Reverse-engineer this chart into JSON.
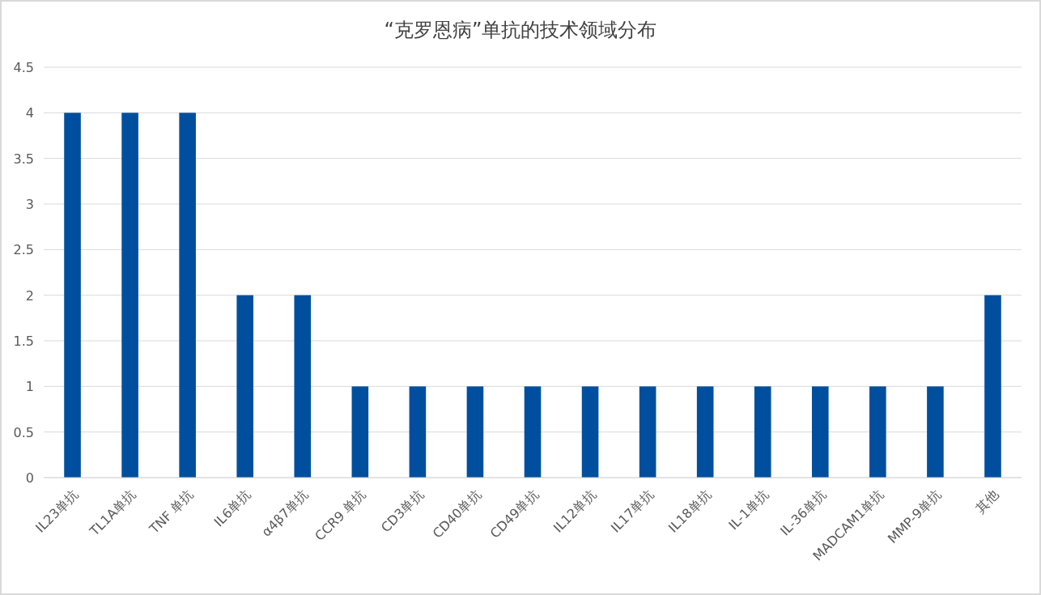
{
  "chart_data": {
    "type": "bar",
    "title": "“克罗恩病”单抗的技术领域分布",
    "categories": [
      "IL23单抗",
      "TL1A单抗",
      "TNF 单抗",
      "IL6单抗",
      "α4β7单抗",
      "CCR9 单抗",
      "CD3单抗",
      "CD40单抗",
      "CD49单抗",
      "IL12单抗",
      "IL17单抗",
      "IL18单抗",
      "IL-1单抗",
      "IL-36单抗",
      "MADCAM1单抗",
      "MMP-9单抗",
      "其他"
    ],
    "values": [
      4,
      4,
      4,
      2,
      2,
      1,
      1,
      1,
      1,
      1,
      1,
      1,
      1,
      1,
      1,
      1,
      2
    ],
    "color": "#004f9f",
    "ylim": [
      0,
      4.5
    ],
    "yticks": [
      0,
      0.5,
      1,
      1.5,
      2,
      2.5,
      3,
      3.5,
      4,
      4.5
    ],
    "grid": "y"
  }
}
